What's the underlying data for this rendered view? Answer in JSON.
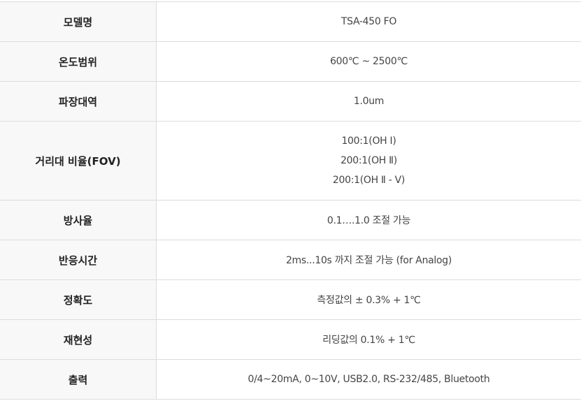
{
  "rows": [
    {
      "label": "모델명",
      "values": [
        "TSA-450 FO"
      ]
    },
    {
      "label": "온도범위",
      "values": [
        "600℃ ~ 2500℃"
      ]
    },
    {
      "label": "파장대역",
      "values": [
        "1.0um"
      ]
    },
    {
      "label": "거리대 비율(FOV)",
      "values": [
        "100:1(OH Ⅰ)",
        "200:1(OH Ⅱ)",
        "200:1(OH Ⅱ - Ⅴ)"
      ]
    },
    {
      "label": "방사율",
      "values": [
        "0.1….1.0 조절 가능"
      ]
    },
    {
      "label": "반응시간",
      "values": [
        "2ms...10s 까지 조절 가능 (for Analog)"
      ]
    },
    {
      "label": "정확도",
      "values": [
        "측정값의 ± 0.3% + 1℃"
      ]
    },
    {
      "label": "재현성",
      "values": [
        "리딩값의 0.1% + 1℃"
      ]
    },
    {
      "label": "출력",
      "values": [
        "0/4~20mA, 0~10V, USB2.0, RS-232/485, Bluetooth"
      ]
    }
  ]
}
